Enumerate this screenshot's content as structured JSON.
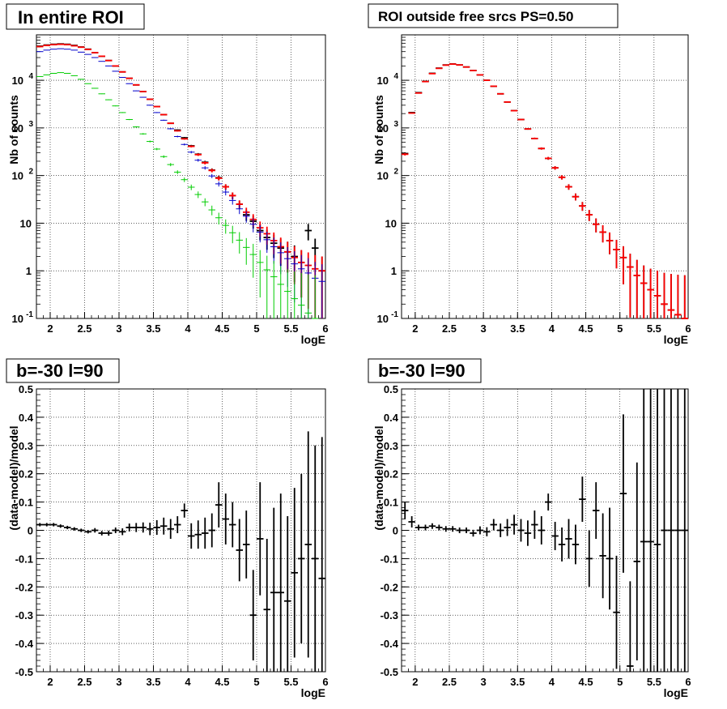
{
  "colors": {
    "data": "#000000",
    "model_total": "#ff0000",
    "blue_series": "#0000cc",
    "green_series": "#00cc00",
    "frame": "#000000",
    "grid": "#000000"
  },
  "panels": [
    {
      "title": "In entire ROI",
      "xlabel": "logE",
      "ylabel": "Nb of counts"
    },
    {
      "title": "ROI outside free srcs PS=0.50",
      "xlabel": "logE",
      "ylabel": "Nb of counts"
    },
    {
      "title": "b=-30 l=90",
      "xlabel": "logE",
      "ylabel": "(data-model)/model"
    },
    {
      "title": "b=-30 l=90",
      "xlabel": "logE",
      "ylabel": "(data-model)/model"
    }
  ],
  "chart_data": [
    {
      "type": "scatter",
      "title": "In entire ROI",
      "xlabel": "logE",
      "ylabel": "Nb of counts",
      "yscale": "log",
      "xlim": [
        1.8,
        6.0
      ],
      "ylim": [
        0.1,
        90000
      ],
      "grid": true,
      "x_ticks": [
        "2",
        "2.5",
        "3",
        "3.5",
        "4",
        "4.5",
        "5",
        "5.5",
        "6"
      ],
      "y_ticks": [
        "10^-1",
        "1",
        "10",
        "10^2",
        "10^3",
        "10^4"
      ],
      "x": [
        1.85,
        1.95,
        2.05,
        2.15,
        2.25,
        2.35,
        2.45,
        2.55,
        2.65,
        2.75,
        2.85,
        2.95,
        3.05,
        3.15,
        3.25,
        3.35,
        3.45,
        3.55,
        3.65,
        3.75,
        3.85,
        3.95,
        4.05,
        4.15,
        4.25,
        4.35,
        4.45,
        4.55,
        4.65,
        4.75,
        4.85,
        4.95,
        5.05,
        5.15,
        5.25,
        5.35,
        5.45,
        5.55,
        5.65,
        5.75,
        5.85,
        5.95
      ],
      "series": [
        {
          "color": "#000000",
          "values": [
            52000,
            55000,
            57000,
            58000,
            57000,
            54000,
            50000,
            45000,
            38000,
            32000,
            26000,
            20000,
            15000,
            11000,
            8000,
            5800,
            4000,
            2800,
            1900,
            1250,
            900,
            620,
            420,
            280,
            190,
            130,
            90,
            58,
            38,
            25,
            15,
            11,
            7,
            5,
            3.8,
            3,
            2.5,
            2,
            1.5,
            7,
            3,
            1
          ]
        },
        {
          "color": "#ff0000",
          "values": [
            51000,
            54000,
            56000,
            57000,
            56000,
            53000,
            49500,
            44500,
            38000,
            32000,
            26000,
            20000,
            15000,
            11000,
            8000,
            5800,
            4000,
            2800,
            1900,
            1250,
            870,
            590,
            410,
            275,
            185,
            128,
            88,
            58,
            38,
            25,
            17,
            12,
            8,
            6,
            4.3,
            3.2,
            2.5,
            1.9,
            1.5,
            1.3,
            1.1,
            1.0
          ]
        },
        {
          "color": "#0000cc",
          "values": [
            40000,
            43000,
            45000,
            46000,
            45000,
            43000,
            39000,
            35000,
            30000,
            25000,
            20000,
            15500,
            11500,
            8500,
            6000,
            4400,
            3000,
            2100,
            1450,
            960,
            660,
            450,
            310,
            210,
            145,
            98,
            67,
            45,
            30,
            20,
            14,
            9.5,
            6.5,
            4.5,
            3.2,
            2.4,
            1.8,
            1.4,
            1.1,
            0.9,
            0.7,
            0.6
          ]
        },
        {
          "color": "#00cc00",
          "values": [
            12000,
            13000,
            14000,
            14500,
            14000,
            12500,
            10500,
            8500,
            6800,
            5200,
            3900,
            2900,
            2100,
            1500,
            1050,
            750,
            520,
            360,
            250,
            170,
            118,
            82,
            57,
            40,
            28,
            19,
            13,
            9,
            6.3,
            4.4,
            3.1,
            2.2,
            1.5,
            1.05,
            0.75,
            0.52,
            0.37,
            0.26,
            0.19,
            0.13,
            0.1,
            0.08
          ]
        }
      ]
    },
    {
      "type": "scatter",
      "title": "ROI outside free srcs PS=0.50",
      "xlabel": "logE",
      "ylabel": "Nb of counts",
      "yscale": "log",
      "xlim": [
        1.8,
        6.0
      ],
      "ylim": [
        0.1,
        90000
      ],
      "grid": true,
      "x_ticks": [
        "2",
        "2.5",
        "3",
        "3.5",
        "4",
        "4.5",
        "5",
        "5.5",
        "6"
      ],
      "y_ticks": [
        "10^-1",
        "1",
        "10",
        "10^2",
        "10^3",
        "10^4"
      ],
      "x": [
        1.85,
        1.95,
        2.05,
        2.15,
        2.25,
        2.35,
        2.45,
        2.55,
        2.65,
        2.75,
        2.85,
        2.95,
        3.05,
        3.15,
        3.25,
        3.35,
        3.45,
        3.55,
        3.65,
        3.75,
        3.85,
        3.95,
        4.05,
        4.15,
        4.25,
        4.35,
        4.45,
        4.55,
        4.65,
        4.75,
        4.85,
        4.95,
        5.05,
        5.15,
        5.25,
        5.35,
        5.45,
        5.55,
        5.65,
        5.75,
        5.85,
        5.95
      ],
      "series": [
        {
          "color": "#000000",
          "values": [
            290,
            2100,
            5500,
            9500,
            14000,
            18000,
            21000,
            22000,
            21000,
            19000,
            16000,
            13000,
            10000,
            7500,
            5200,
            3500,
            2300,
            1500,
            950,
            600,
            370,
            230,
            145,
            92,
            58,
            36,
            23,
            15,
            9.5,
            6.5,
            4.3,
            2.8,
            1.9,
            1.2,
            0.8,
            0.55,
            0.4,
            0.3,
            0.2,
            0.15,
            0.12,
            0.1
          ]
        },
        {
          "color": "#ff0000",
          "values": [
            280,
            2050,
            5400,
            9400,
            13800,
            17800,
            20800,
            21900,
            21000,
            19000,
            16000,
            13000,
            10000,
            7500,
            5200,
            3500,
            2300,
            1500,
            950,
            600,
            370,
            230,
            145,
            92,
            58,
            36,
            23,
            15,
            9.5,
            6.5,
            4.3,
            2.8,
            1.9,
            1.2,
            0.8,
            0.55,
            0.4,
            0.3,
            0.2,
            0.15,
            0.12,
            0.1
          ]
        }
      ]
    },
    {
      "type": "scatter",
      "title": "b=-30 l=90",
      "xlabel": "logE",
      "ylabel": "(data-model)/model",
      "xlim": [
        1.8,
        6.0
      ],
      "ylim": [
        -0.5,
        0.5
      ],
      "grid": true,
      "x_ticks": [
        "2",
        "2.5",
        "3",
        "3.5",
        "4",
        "4.5",
        "5",
        "5.5",
        "6"
      ],
      "y_ticks": [
        "-0.5",
        "-0.4",
        "-0.3",
        "-0.2",
        "-0.1",
        "0",
        "0.1",
        "0.2",
        "0.3",
        "0.4",
        "0.5"
      ],
      "x": [
        1.85,
        1.95,
        2.05,
        2.15,
        2.25,
        2.35,
        2.45,
        2.55,
        2.65,
        2.75,
        2.85,
        2.95,
        3.05,
        3.15,
        3.25,
        3.35,
        3.45,
        3.55,
        3.65,
        3.75,
        3.85,
        3.95,
        4.05,
        4.15,
        4.25,
        4.35,
        4.45,
        4.55,
        4.65,
        4.75,
        4.85,
        4.95,
        5.05,
        5.15,
        5.25,
        5.35,
        5.45,
        5.55,
        5.65,
        5.75,
        5.85,
        5.95
      ],
      "values": [
        0.02,
        0.02,
        0.02,
        0.015,
        0.01,
        0.005,
        0.0,
        -0.005,
        0.0,
        -0.01,
        -0.01,
        0.0,
        -0.005,
        0.01,
        0.01,
        0.01,
        0.005,
        0.01,
        0.015,
        0.005,
        0.02,
        0.07,
        -0.02,
        -0.015,
        -0.01,
        0.0,
        0.09,
        0.04,
        0.02,
        -0.07,
        -0.05,
        -0.3,
        -0.03,
        -0.28,
        -0.22,
        -0.22,
        -0.25,
        -0.15,
        -0.1,
        -0.05,
        -0.1,
        -0.17
      ],
      "errors": [
        0.006,
        0.006,
        0.006,
        0.006,
        0.006,
        0.006,
        0.006,
        0.006,
        0.008,
        0.008,
        0.009,
        0.01,
        0.012,
        0.014,
        0.016,
        0.018,
        0.022,
        0.026,
        0.03,
        0.035,
        0.03,
        0.025,
        0.045,
        0.05,
        0.055,
        0.06,
        0.08,
        0.09,
        0.08,
        0.11,
        0.12,
        0.16,
        0.2,
        0.25,
        0.3,
        0.35,
        0.3,
        0.3,
        0.3,
        0.4,
        0.4,
        0.5
      ]
    },
    {
      "type": "scatter",
      "title": "b=-30 l=90",
      "xlabel": "logE",
      "ylabel": "(data-model)/model",
      "xlim": [
        1.8,
        6.0
      ],
      "ylim": [
        -0.5,
        0.5
      ],
      "grid": true,
      "x_ticks": [
        "2",
        "2.5",
        "3",
        "3.5",
        "4",
        "4.5",
        "5",
        "5.5",
        "6"
      ],
      "y_ticks": [
        "-0.5",
        "-0.4",
        "-0.3",
        "-0.2",
        "-0.1",
        "0",
        "0.1",
        "0.2",
        "0.3",
        "0.4",
        "0.5"
      ],
      "x": [
        1.85,
        1.95,
        2.05,
        2.15,
        2.25,
        2.35,
        2.45,
        2.55,
        2.65,
        2.75,
        2.85,
        2.95,
        3.05,
        3.15,
        3.25,
        3.35,
        3.45,
        3.55,
        3.65,
        3.75,
        3.85,
        3.95,
        4.05,
        4.15,
        4.25,
        4.35,
        4.45,
        4.55,
        4.65,
        4.75,
        4.85,
        4.95,
        5.05,
        5.15,
        5.25,
        5.35,
        5.45,
        5.55,
        5.65,
        5.75,
        5.85,
        5.95
      ],
      "values": [
        0.07,
        0.03,
        0.01,
        0.01,
        0.015,
        0.01,
        0.005,
        0.005,
        0.0,
        0.0,
        -0.01,
        0.0,
        -0.005,
        0.02,
        0.0,
        0.01,
        0.02,
        0.0,
        -0.01,
        0.02,
        0.0,
        0.1,
        -0.02,
        -0.05,
        -0.03,
        -0.05,
        0.11,
        -0.1,
        0.07,
        -0.09,
        -0.1,
        -0.29,
        0.13,
        -0.48,
        -0.11,
        -0.04,
        -0.04,
        -0.05,
        0.0,
        0.0,
        0.0,
        0.0
      ],
      "errors": [
        0.03,
        0.02,
        0.01,
        0.01,
        0.01,
        0.01,
        0.01,
        0.01,
        0.01,
        0.01,
        0.012,
        0.014,
        0.016,
        0.02,
        0.024,
        0.03,
        0.035,
        0.04,
        0.045,
        0.05,
        0.05,
        0.03,
        0.05,
        0.06,
        0.07,
        0.07,
        0.08,
        0.1,
        0.1,
        0.15,
        0.18,
        0.2,
        0.28,
        0.3,
        0.35,
        0.55,
        0.6,
        0.6,
        0.6,
        0.6,
        0.6,
        0.6
      ]
    }
  ]
}
